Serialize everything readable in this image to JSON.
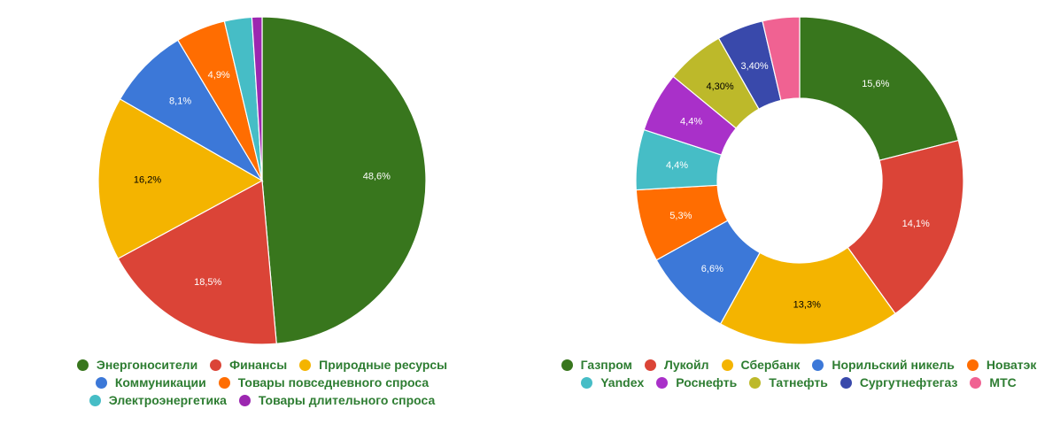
{
  "chart_data": [
    {
      "type": "pie",
      "categories": [
        "Энергоносители",
        "Финансы",
        "Природные ресурсы",
        "Коммуникации",
        "Товары повседневного спроса",
        "Электроэнергетика",
        "Товары длительного спроса"
      ],
      "values": [
        48.6,
        18.5,
        16.2,
        8.1,
        4.9,
        2.7,
        1.0
      ],
      "labels": [
        "48,6%",
        "18,5%",
        "16,2%",
        "8,1%",
        "4,9%",
        "",
        ""
      ],
      "colors": [
        "#38761d",
        "#db4437",
        "#f4b400",
        "#3c78d8",
        "#ff6d01",
        "#46bdc6",
        "#9c27b0"
      ],
      "legend": "bottom"
    },
    {
      "type": "donut",
      "categories": [
        "Газпром",
        "Лукойл",
        "Сбербанк",
        "Норильский никель",
        "Новатэк",
        "Yandex",
        "Роснефть",
        "Татнефть",
        "Сургутнефтегаз",
        "МТС"
      ],
      "values": [
        15.6,
        14.1,
        13.3,
        6.6,
        5.3,
        4.4,
        4.4,
        4.3,
        3.4,
        2.7
      ],
      "labels": [
        "15,6%",
        "14,1%",
        "13,3%",
        "6,6%",
        "5,3%",
        "4,4%",
        "4,4%",
        "4,30%",
        "3,40%",
        ""
      ],
      "colors": [
        "#38761d",
        "#db4437",
        "#f4b400",
        "#3c78d8",
        "#ff6d01",
        "#46bdc6",
        "#a930c9",
        "#bdb92a",
        "#3949ab",
        "#f06292"
      ],
      "legend": "bottom"
    }
  ]
}
